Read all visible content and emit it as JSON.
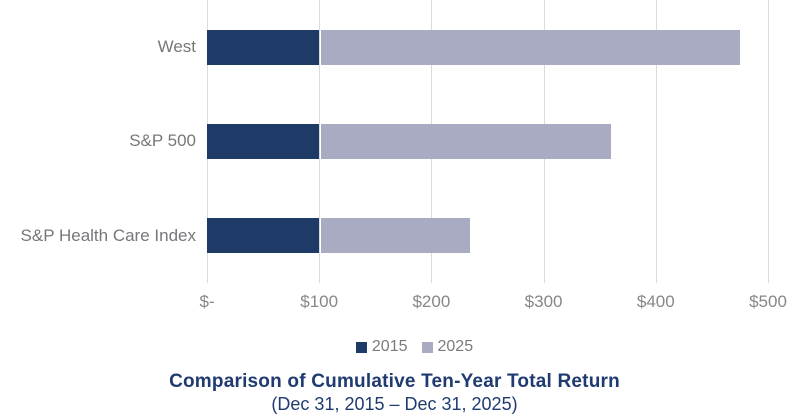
{
  "chart": {
    "title": "Comparison of Cumulative Ten-Year Total Return",
    "subtitle": "(Dec 31, 2015 – Dec 31, 2025)"
  },
  "chart_data": {
    "type": "bar",
    "orientation": "horizontal",
    "stacked": true,
    "title": "Comparison of Cumulative Ten-Year Total Return",
    "subtitle": "(Dec 31, 2015 – Dec 31, 2025)",
    "categories": [
      "West",
      "S&P 500",
      "S&P Health Care Index"
    ],
    "series": [
      {
        "name": "2015",
        "color": "#1e3a67",
        "values": [
          100,
          100,
          100
        ]
      },
      {
        "name": "2025",
        "color": "#a8abc1",
        "values": [
          475,
          360,
          235
        ]
      }
    ],
    "note": "2025 segment is drawn stacked from the 2015 base of $100 to the 2025 cumulative total",
    "xlim": [
      0,
      500
    ],
    "x_ticks": [
      {
        "label": "$-",
        "value": 0
      },
      {
        "label": "$100",
        "value": 100
      },
      {
        "label": "$200",
        "value": 200
      },
      {
        "label": "$300",
        "value": 300
      },
      {
        "label": "$400",
        "value": 400
      },
      {
        "label": "$500",
        "value": 500
      }
    ],
    "xlabel": "",
    "ylabel": "",
    "gridlines": "vertical",
    "legend_position": "bottom",
    "colors": {
      "grid": "#dadada",
      "axis_text": "#85878a",
      "category_text": "#75777a",
      "title_text": "#1f3b70",
      "background": "#ffffff"
    }
  }
}
